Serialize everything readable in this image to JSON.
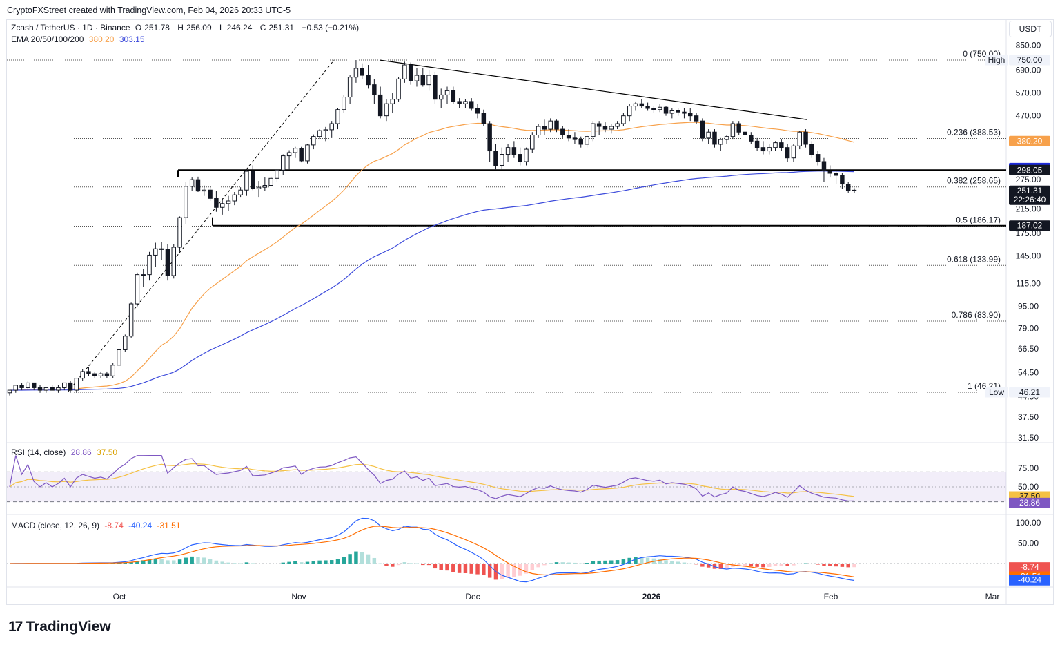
{
  "header": {
    "created": "CryptoFXStreet created with TradingView.com, Feb 04, 2026 20:33 UTC-5"
  },
  "symbol": {
    "title": "Zcash / TetherUS · 1D · Binance",
    "o_label": "O",
    "o": "251.78",
    "h_label": "H",
    "h": "256.09",
    "l_label": "L",
    "l": "246.24",
    "c_label": "C",
    "c": "251.31",
    "change": "−0.53 (−0.21%)"
  },
  "ema": {
    "label": "EMA 20/50/100/200",
    "v50": "380.20",
    "v200": "303.15"
  },
  "currency": "USDT",
  "colors": {
    "up": "#ffffff",
    "down": "#131722",
    "ema50": "#f7a14b",
    "ema200": "#3d4bdb",
    "rsi": "#7e57c2",
    "rsi_ma": "#f5c144",
    "macd": "#2962ff",
    "signal": "#ff6d00",
    "hist_pos": "#26a69a",
    "hist_neg": "#ef5350"
  },
  "chart_data": {
    "type": "candlestick",
    "title": "Zcash / TetherUS · 1D · Binance",
    "y_axis": {
      "scale": "log",
      "ticks": [
        "850.00",
        "690.00",
        "570.00",
        "470.00",
        "275.00",
        "215.00",
        "175.00",
        "145.00",
        "115.00",
        "95.00",
        "79.00",
        "66.50",
        "54.50",
        "44.50",
        "37.50",
        "31.50"
      ]
    },
    "x_axis": {
      "ticks": [
        "Oct",
        "Nov",
        "Dec",
        "2026",
        "Feb",
        "Mar"
      ]
    },
    "candles": [
      [
        46,
        47,
        45,
        47
      ],
      [
        47,
        49,
        46,
        49
      ],
      [
        49,
        50,
        47,
        48
      ],
      [
        48,
        51,
        47,
        50
      ],
      [
        50,
        50,
        47,
        48
      ],
      [
        48,
        49,
        46,
        47
      ],
      [
        47,
        48,
        46,
        48
      ],
      [
        48,
        49,
        47,
        47
      ],
      [
        47,
        49,
        46,
        48
      ],
      [
        48,
        50,
        47,
        50
      ],
      [
        50,
        51,
        46,
        47
      ],
      [
        47,
        52,
        46,
        52
      ],
      [
        52,
        56,
        51,
        55
      ],
      [
        55,
        57,
        53,
        54
      ],
      [
        54,
        55,
        52,
        53
      ],
      [
        53,
        55,
        52,
        54
      ],
      [
        54,
        55,
        52,
        53
      ],
      [
        53,
        59,
        52,
        58
      ],
      [
        58,
        67,
        57,
        66
      ],
      [
        66,
        75,
        65,
        74
      ],
      [
        74,
        98,
        73,
        97
      ],
      [
        97,
        126,
        95,
        124
      ],
      [
        124,
        130,
        112,
        124
      ],
      [
        124,
        150,
        118,
        146
      ],
      [
        146,
        162,
        132,
        154
      ],
      [
        154,
        163,
        140,
        153
      ],
      [
        153,
        160,
        118,
        123
      ],
      [
        123,
        160,
        120,
        156
      ],
      [
        156,
        202,
        150,
        200
      ],
      [
        200,
        270,
        190,
        260
      ],
      [
        260,
        280,
        250,
        275
      ],
      [
        275,
        282,
        248,
        250
      ],
      [
        250,
        262,
        240,
        252
      ],
      [
        252,
        260,
        230,
        235
      ],
      [
        235,
        250,
        210,
        218
      ],
      [
        218,
        235,
        205,
        225
      ],
      [
        225,
        240,
        212,
        230
      ],
      [
        230,
        248,
        222,
        242
      ],
      [
        242,
        258,
        238,
        252
      ],
      [
        252,
        300,
        240,
        295
      ],
      [
        295,
        310,
        252,
        255
      ],
      [
        255,
        272,
        238,
        258
      ],
      [
        258,
        280,
        250,
        262
      ],
      [
        262,
        282,
        260,
        278
      ],
      [
        278,
        302,
        270,
        298
      ],
      [
        298,
        340,
        286,
        336
      ],
      [
        336,
        352,
        300,
        345
      ],
      [
        345,
        362,
        330,
        358
      ],
      [
        358,
        362,
        318,
        322
      ],
      [
        322,
        372,
        315,
        368
      ],
      [
        368,
        402,
        355,
        395
      ],
      [
        395,
        420,
        385,
        415
      ],
      [
        415,
        428,
        380,
        418
      ],
      [
        418,
        450,
        390,
        440
      ],
      [
        440,
        500,
        420,
        495
      ],
      [
        495,
        560,
        480,
        550
      ],
      [
        550,
        660,
        520,
        650
      ],
      [
        650,
        750,
        620,
        700
      ],
      [
        700,
        730,
        640,
        660
      ],
      [
        660,
        720,
        590,
        610
      ],
      [
        610,
        640,
        520,
        560
      ],
      [
        560,
        600,
        460,
        470
      ],
      [
        470,
        540,
        450,
        520
      ],
      [
        520,
        570,
        480,
        540
      ],
      [
        540,
        650,
        530,
        640
      ],
      [
        640,
        740,
        620,
        720
      ],
      [
        720,
        735,
        610,
        630
      ],
      [
        630,
        700,
        600,
        660
      ],
      [
        660,
        700,
        600,
        610
      ],
      [
        610,
        690,
        580,
        660
      ],
      [
        660,
        680,
        520,
        540
      ],
      [
        540,
        590,
        500,
        560
      ],
      [
        560,
        600,
        520,
        580
      ],
      [
        580,
        600,
        520,
        530
      ],
      [
        530,
        545,
        500,
        520
      ],
      [
        520,
        540,
        500,
        530
      ],
      [
        530,
        545,
        490,
        500
      ],
      [
        500,
        520,
        460,
        480
      ],
      [
        480,
        495,
        430,
        440
      ],
      [
        440,
        450,
        320,
        350
      ],
      [
        350,
        370,
        300,
        310
      ],
      [
        310,
        360,
        300,
        340
      ],
      [
        340,
        370,
        320,
        360
      ],
      [
        360,
        380,
        330,
        340
      ],
      [
        340,
        360,
        310,
        320
      ],
      [
        320,
        360,
        310,
        355
      ],
      [
        355,
        410,
        345,
        400
      ],
      [
        400,
        440,
        390,
        430
      ],
      [
        430,
        455,
        400,
        420
      ],
      [
        420,
        460,
        410,
        450
      ],
      [
        450,
        455,
        410,
        420
      ],
      [
        420,
        430,
        390,
        400
      ],
      [
        400,
        420,
        380,
        390
      ],
      [
        390,
        410,
        370,
        385
      ],
      [
        385,
        395,
        360,
        370
      ],
      [
        370,
        400,
        360,
        395
      ],
      [
        395,
        450,
        380,
        440
      ],
      [
        440,
        450,
        400,
        430
      ],
      [
        430,
        445,
        410,
        420
      ],
      [
        420,
        440,
        405,
        430
      ],
      [
        430,
        450,
        420,
        440
      ],
      [
        440,
        480,
        430,
        470
      ],
      [
        470,
        520,
        450,
        510
      ],
      [
        510,
        530,
        490,
        520
      ],
      [
        520,
        540,
        500,
        510
      ],
      [
        510,
        525,
        490,
        500
      ],
      [
        500,
        510,
        480,
        495
      ],
      [
        495,
        520,
        485,
        505
      ],
      [
        505,
        510,
        470,
        480
      ],
      [
        480,
        500,
        460,
        490
      ],
      [
        490,
        500,
        470,
        485
      ],
      [
        485,
        500,
        460,
        480
      ],
      [
        480,
        500,
        450,
        470
      ],
      [
        470,
        480,
        440,
        450
      ],
      [
        450,
        460,
        380,
        390
      ],
      [
        390,
        420,
        370,
        410
      ],
      [
        410,
        420,
        360,
        370
      ],
      [
        370,
        390,
        350,
        385
      ],
      [
        385,
        400,
        370,
        395
      ],
      [
        395,
        450,
        385,
        440
      ],
      [
        440,
        450,
        400,
        410
      ],
      [
        410,
        420,
        380,
        400
      ],
      [
        400,
        410,
        370,
        380
      ],
      [
        380,
        390,
        350,
        360
      ],
      [
        360,
        380,
        340,
        350
      ],
      [
        350,
        370,
        340,
        360
      ],
      [
        360,
        380,
        350,
        375
      ],
      [
        375,
        385,
        350,
        360
      ],
      [
        360,
        370,
        320,
        330
      ],
      [
        330,
        370,
        320,
        365
      ],
      [
        365,
        415,
        355,
        410
      ],
      [
        410,
        420,
        360,
        370
      ],
      [
        370,
        380,
        330,
        340
      ],
      [
        340,
        350,
        310,
        320
      ],
      [
        320,
        330,
        270,
        296
      ],
      [
        296,
        310,
        280,
        290
      ],
      [
        290,
        300,
        265,
        285
      ],
      [
        285,
        290,
        255,
        265
      ],
      [
        265,
        270,
        246,
        251
      ],
      [
        251.78,
        256.09,
        246.24,
        251.31
      ]
    ],
    "ema50_label": "EMA 50",
    "ema200_label": "EMA 200",
    "levels": [
      {
        "label": "0 (750.00)",
        "value": 750
      },
      {
        "label": "0.236 (388.53)",
        "value": 388.53
      },
      {
        "label": "0.382 (258.65)",
        "value": 258.65
      },
      {
        "label": "0.5 (186.17)",
        "value": 186.17
      },
      {
        "label": "0.618 (133.99)",
        "value": 133.99
      },
      {
        "label": "0.786 (83.90)",
        "value": 83.9
      },
      {
        "label": "1 (46.21)",
        "value": 46.21
      }
    ],
    "support_resistance": [
      298.05,
      187.02
    ],
    "price_labels": [
      {
        "text": "High",
        "value": "750.00",
        "price": 750,
        "style": "light"
      },
      {
        "text": "",
        "value": "380.20",
        "price": 380.2,
        "style": "orange"
      },
      {
        "text": "",
        "value": "303.15",
        "price": 303.15,
        "style": "blue"
      },
      {
        "text": "",
        "value": "298.05",
        "price": 298.05,
        "style": "black"
      },
      {
        "text": "",
        "value": "251.31",
        "price": 251.31,
        "style": "black",
        "sub": "22:26:40"
      },
      {
        "text": "",
        "value": "187.02",
        "price": 187.02,
        "style": "black"
      },
      {
        "text": "Low",
        "value": "46.21",
        "price": 46.21,
        "style": "light"
      }
    ],
    "rsi": {
      "label": "RSI (14, close)",
      "value": "28.86",
      "ma": "37.50",
      "ticks": [
        "75.00",
        "50.00"
      ],
      "upper": 70,
      "middle": 50,
      "lower": 30
    },
    "macd": {
      "label": "MACD (close, 12, 26, 9)",
      "hist": "-8.74",
      "macd": "-40.24",
      "signal": "-31.51",
      "ticks": [
        "100.00",
        "50.00",
        "0.00"
      ]
    }
  }
}
